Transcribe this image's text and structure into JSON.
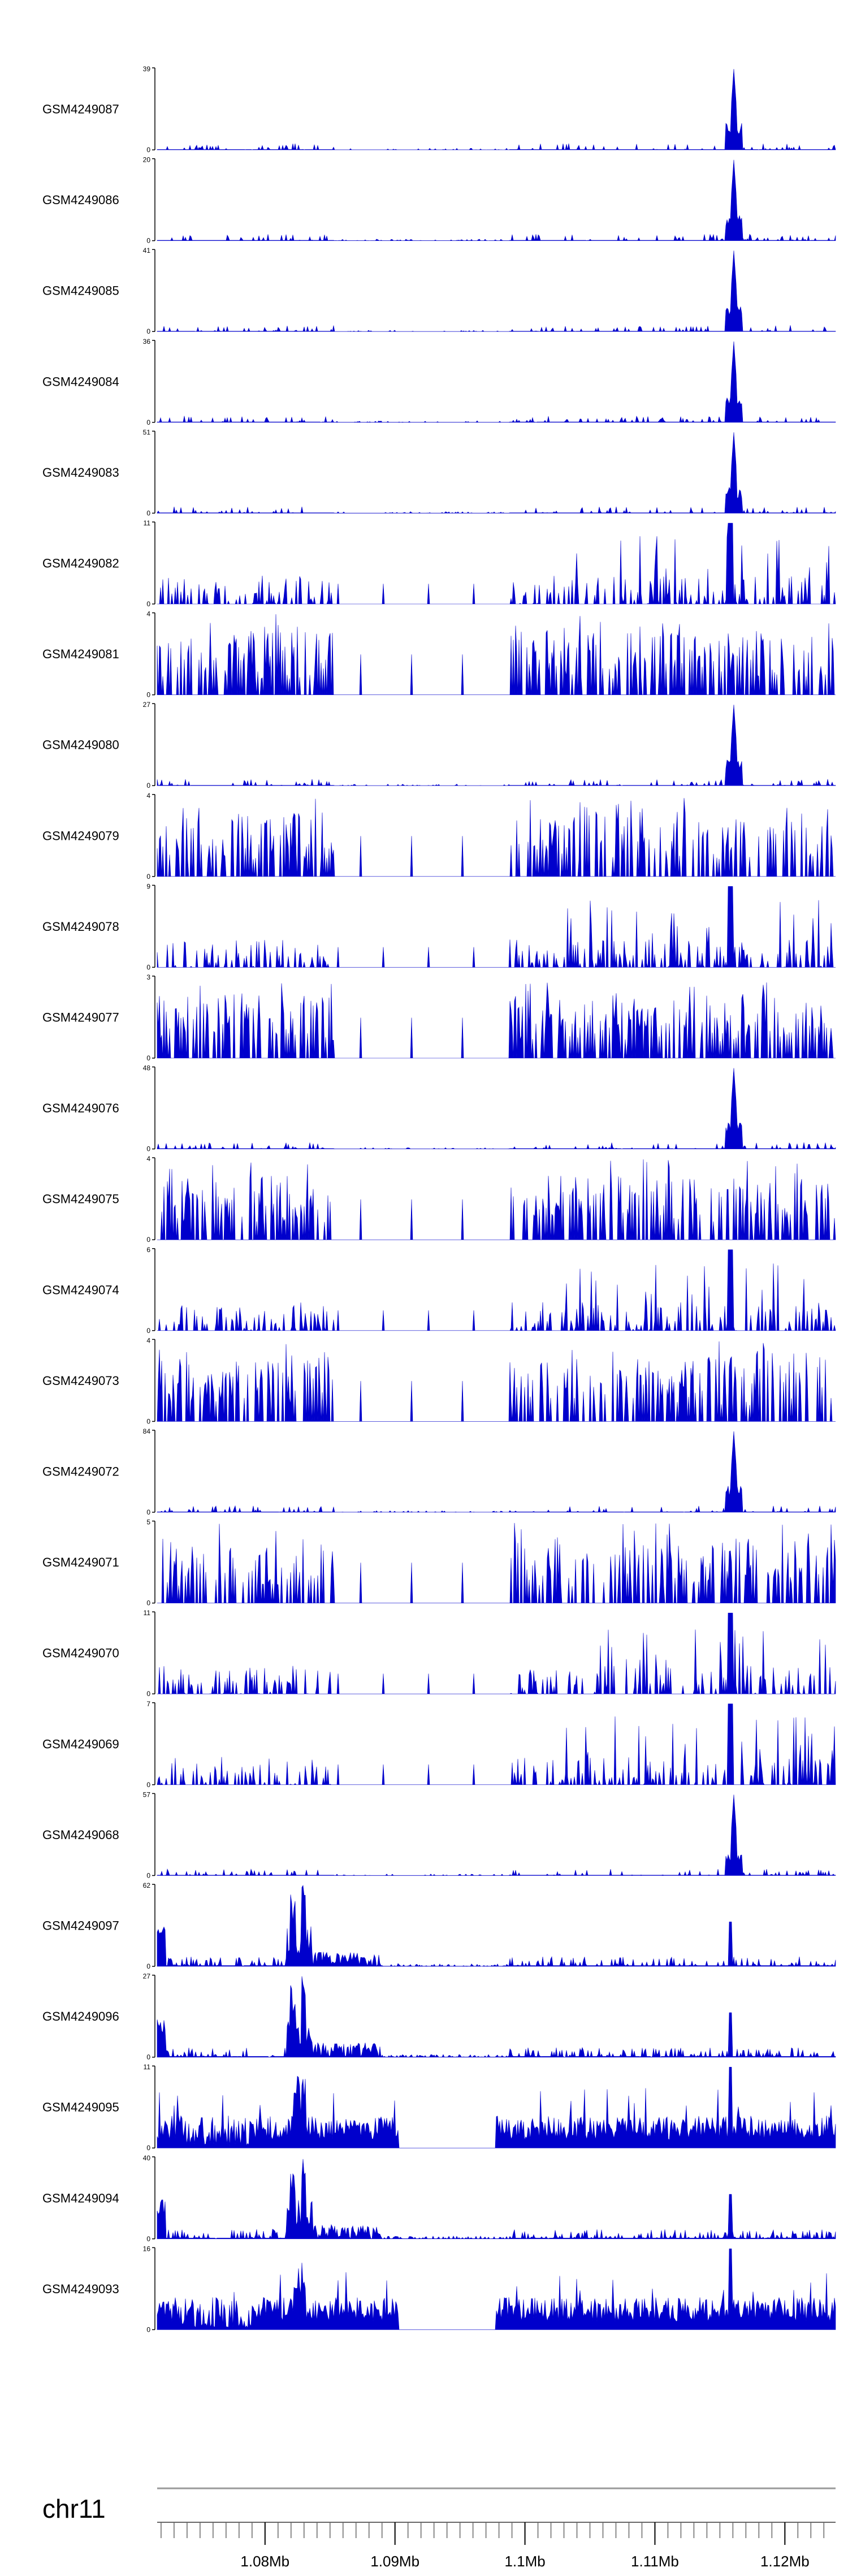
{
  "colors": {
    "fill": "#0000cc",
    "axis": "#000000",
    "chrom_line": "#999999",
    "tick": "#666666"
  },
  "chart_data": {
    "type": "area",
    "region": {
      "chrom": "chr11",
      "x_range_mb": [
        1.0717,
        1.1239
      ]
    },
    "tracks": [
      {
        "name": "GSM4249087",
        "ymax": "39",
        "ymin": "0",
        "profile": "A",
        "max_value": 39
      },
      {
        "name": "GSM4249086",
        "ymax": "20",
        "ymin": "0",
        "profile": "A",
        "max_value": 20
      },
      {
        "name": "GSM4249085",
        "ymax": "41",
        "ymin": "0",
        "profile": "A",
        "max_value": 41
      },
      {
        "name": "GSM4249084",
        "ymax": "36",
        "ymin": "0",
        "profile": "A",
        "max_value": 36
      },
      {
        "name": "GSM4249083",
        "ymax": "51",
        "ymin": "0",
        "profile": "A",
        "max_value": 51
      },
      {
        "name": "GSM4249082",
        "ymax": "11",
        "ymin": "0",
        "profile": "B",
        "max_value": 11
      },
      {
        "name": "GSM4249081",
        "ymax": "4",
        "ymin": "0",
        "profile": "C",
        "max_value": 4
      },
      {
        "name": "GSM4249080",
        "ymax": "27",
        "ymin": "0",
        "profile": "A",
        "max_value": 27
      },
      {
        "name": "GSM4249079",
        "ymax": "4",
        "ymin": "0",
        "profile": "C",
        "max_value": 4
      },
      {
        "name": "GSM4249078",
        "ymax": "9",
        "ymin": "0",
        "profile": "B",
        "max_value": 9
      },
      {
        "name": "GSM4249077",
        "ymax": "3",
        "ymin": "0",
        "profile": "C",
        "max_value": 3
      },
      {
        "name": "GSM4249076",
        "ymax": "48",
        "ymin": "0",
        "profile": "A",
        "max_value": 48
      },
      {
        "name": "GSM4249075",
        "ymax": "4",
        "ymin": "0",
        "profile": "C",
        "max_value": 4
      },
      {
        "name": "GSM4249074",
        "ymax": "6",
        "ymin": "0",
        "profile": "B",
        "max_value": 6
      },
      {
        "name": "GSM4249073",
        "ymax": "4",
        "ymin": "0",
        "profile": "C",
        "max_value": 4
      },
      {
        "name": "GSM4249072",
        "ymax": "84",
        "ymin": "0",
        "profile": "A",
        "max_value": 84
      },
      {
        "name": "GSM4249071",
        "ymax": "5",
        "ymin": "0",
        "profile": "C",
        "max_value": 5
      },
      {
        "name": "GSM4249070",
        "ymax": "11",
        "ymin": "0",
        "profile": "B",
        "max_value": 11
      },
      {
        "name": "GSM4249069",
        "ymax": "7",
        "ymin": "0",
        "profile": "B",
        "max_value": 7
      },
      {
        "name": "GSM4249068",
        "ymax": "57",
        "ymin": "0",
        "profile": "A",
        "max_value": 57
      },
      {
        "name": "GSM4249097",
        "ymax": "62",
        "ymin": "0",
        "profile": "D",
        "max_value": 62
      },
      {
        "name": "GSM4249096",
        "ymax": "27",
        "ymin": "0",
        "profile": "D",
        "max_value": 27
      },
      {
        "name": "GSM4249095",
        "ymax": "11",
        "ymin": "0",
        "profile": "E",
        "max_value": 11
      },
      {
        "name": "GSM4249094",
        "ymax": "40",
        "ymin": "0",
        "profile": "D",
        "max_value": 40
      },
      {
        "name": "GSM4249093",
        "ymax": "16",
        "ymin": "0",
        "profile": "E",
        "max_value": 16
      }
    ],
    "axis": {
      "chrom_label": "chr11",
      "ticks": [
        {
          "mb": 1.08,
          "label": "1.08Mb"
        },
        {
          "mb": 1.09,
          "label": "1.09Mb"
        },
        {
          "mb": 1.1,
          "label": "1.1Mb"
        },
        {
          "mb": 1.11,
          "label": "1.11Mb"
        },
        {
          "mb": 1.12,
          "label": "1.12Mb"
        }
      ],
      "minor_step_mb": 0.001
    },
    "grid": false,
    "legend": "none"
  }
}
